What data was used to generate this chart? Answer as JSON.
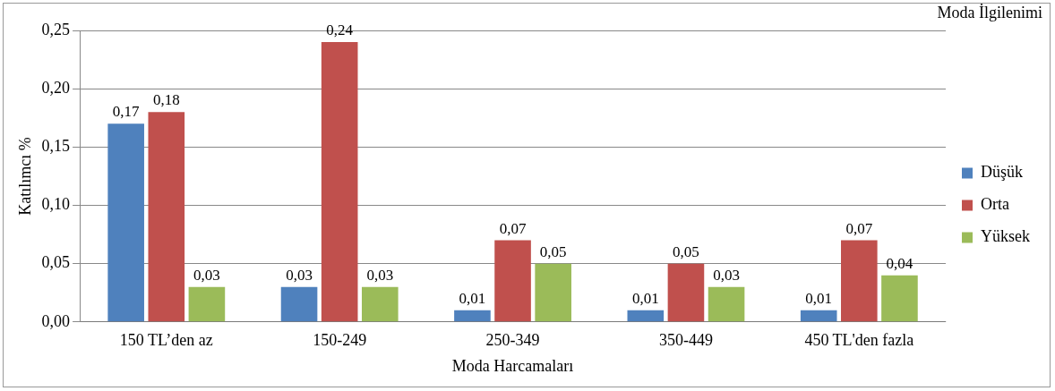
{
  "chart_data": {
    "type": "bar",
    "xlabel": "Moda Harcamaları",
    "ylabel": "Katılımcı %",
    "legend_title": "Moda İlgilenimi",
    "categories": [
      "150 TL’den az",
      "150-249",
      "250-349",
      "350-449",
      "450 TL'den fazla"
    ],
    "series": [
      {
        "name": "Düşük",
        "color": "#4f81bd",
        "values": [
          0.17,
          0.03,
          0.01,
          0.01,
          0.01
        ],
        "value_labels": [
          "0,17",
          "0,03",
          "0,01",
          "0,01",
          "0,01"
        ]
      },
      {
        "name": "Orta",
        "color": "#c0504d",
        "values": [
          0.18,
          0.24,
          0.07,
          0.05,
          0.07
        ],
        "value_labels": [
          "0,18",
          "0,24",
          "0,07",
          "0,05",
          "0,07"
        ]
      },
      {
        "name": "Yüksek",
        "color": "#9bbb59",
        "values": [
          0.03,
          0.03,
          0.05,
          0.03,
          0.04
        ],
        "value_labels": [
          "0,03",
          "0,03",
          "0,05",
          "0,03",
          "0,04"
        ]
      }
    ],
    "ylim": [
      0,
      0.25
    ],
    "yticks": [
      {
        "value": 0,
        "label": "0,00"
      },
      {
        "value": 0.05,
        "label": "0,05"
      },
      {
        "value": 0.1,
        "label": "0,10"
      },
      {
        "value": 0.15,
        "label": "0,15"
      },
      {
        "value": 0.2,
        "label": "0,20"
      },
      {
        "value": 0.25,
        "label": "0,25"
      }
    ],
    "grid": "y",
    "legend": "right"
  }
}
